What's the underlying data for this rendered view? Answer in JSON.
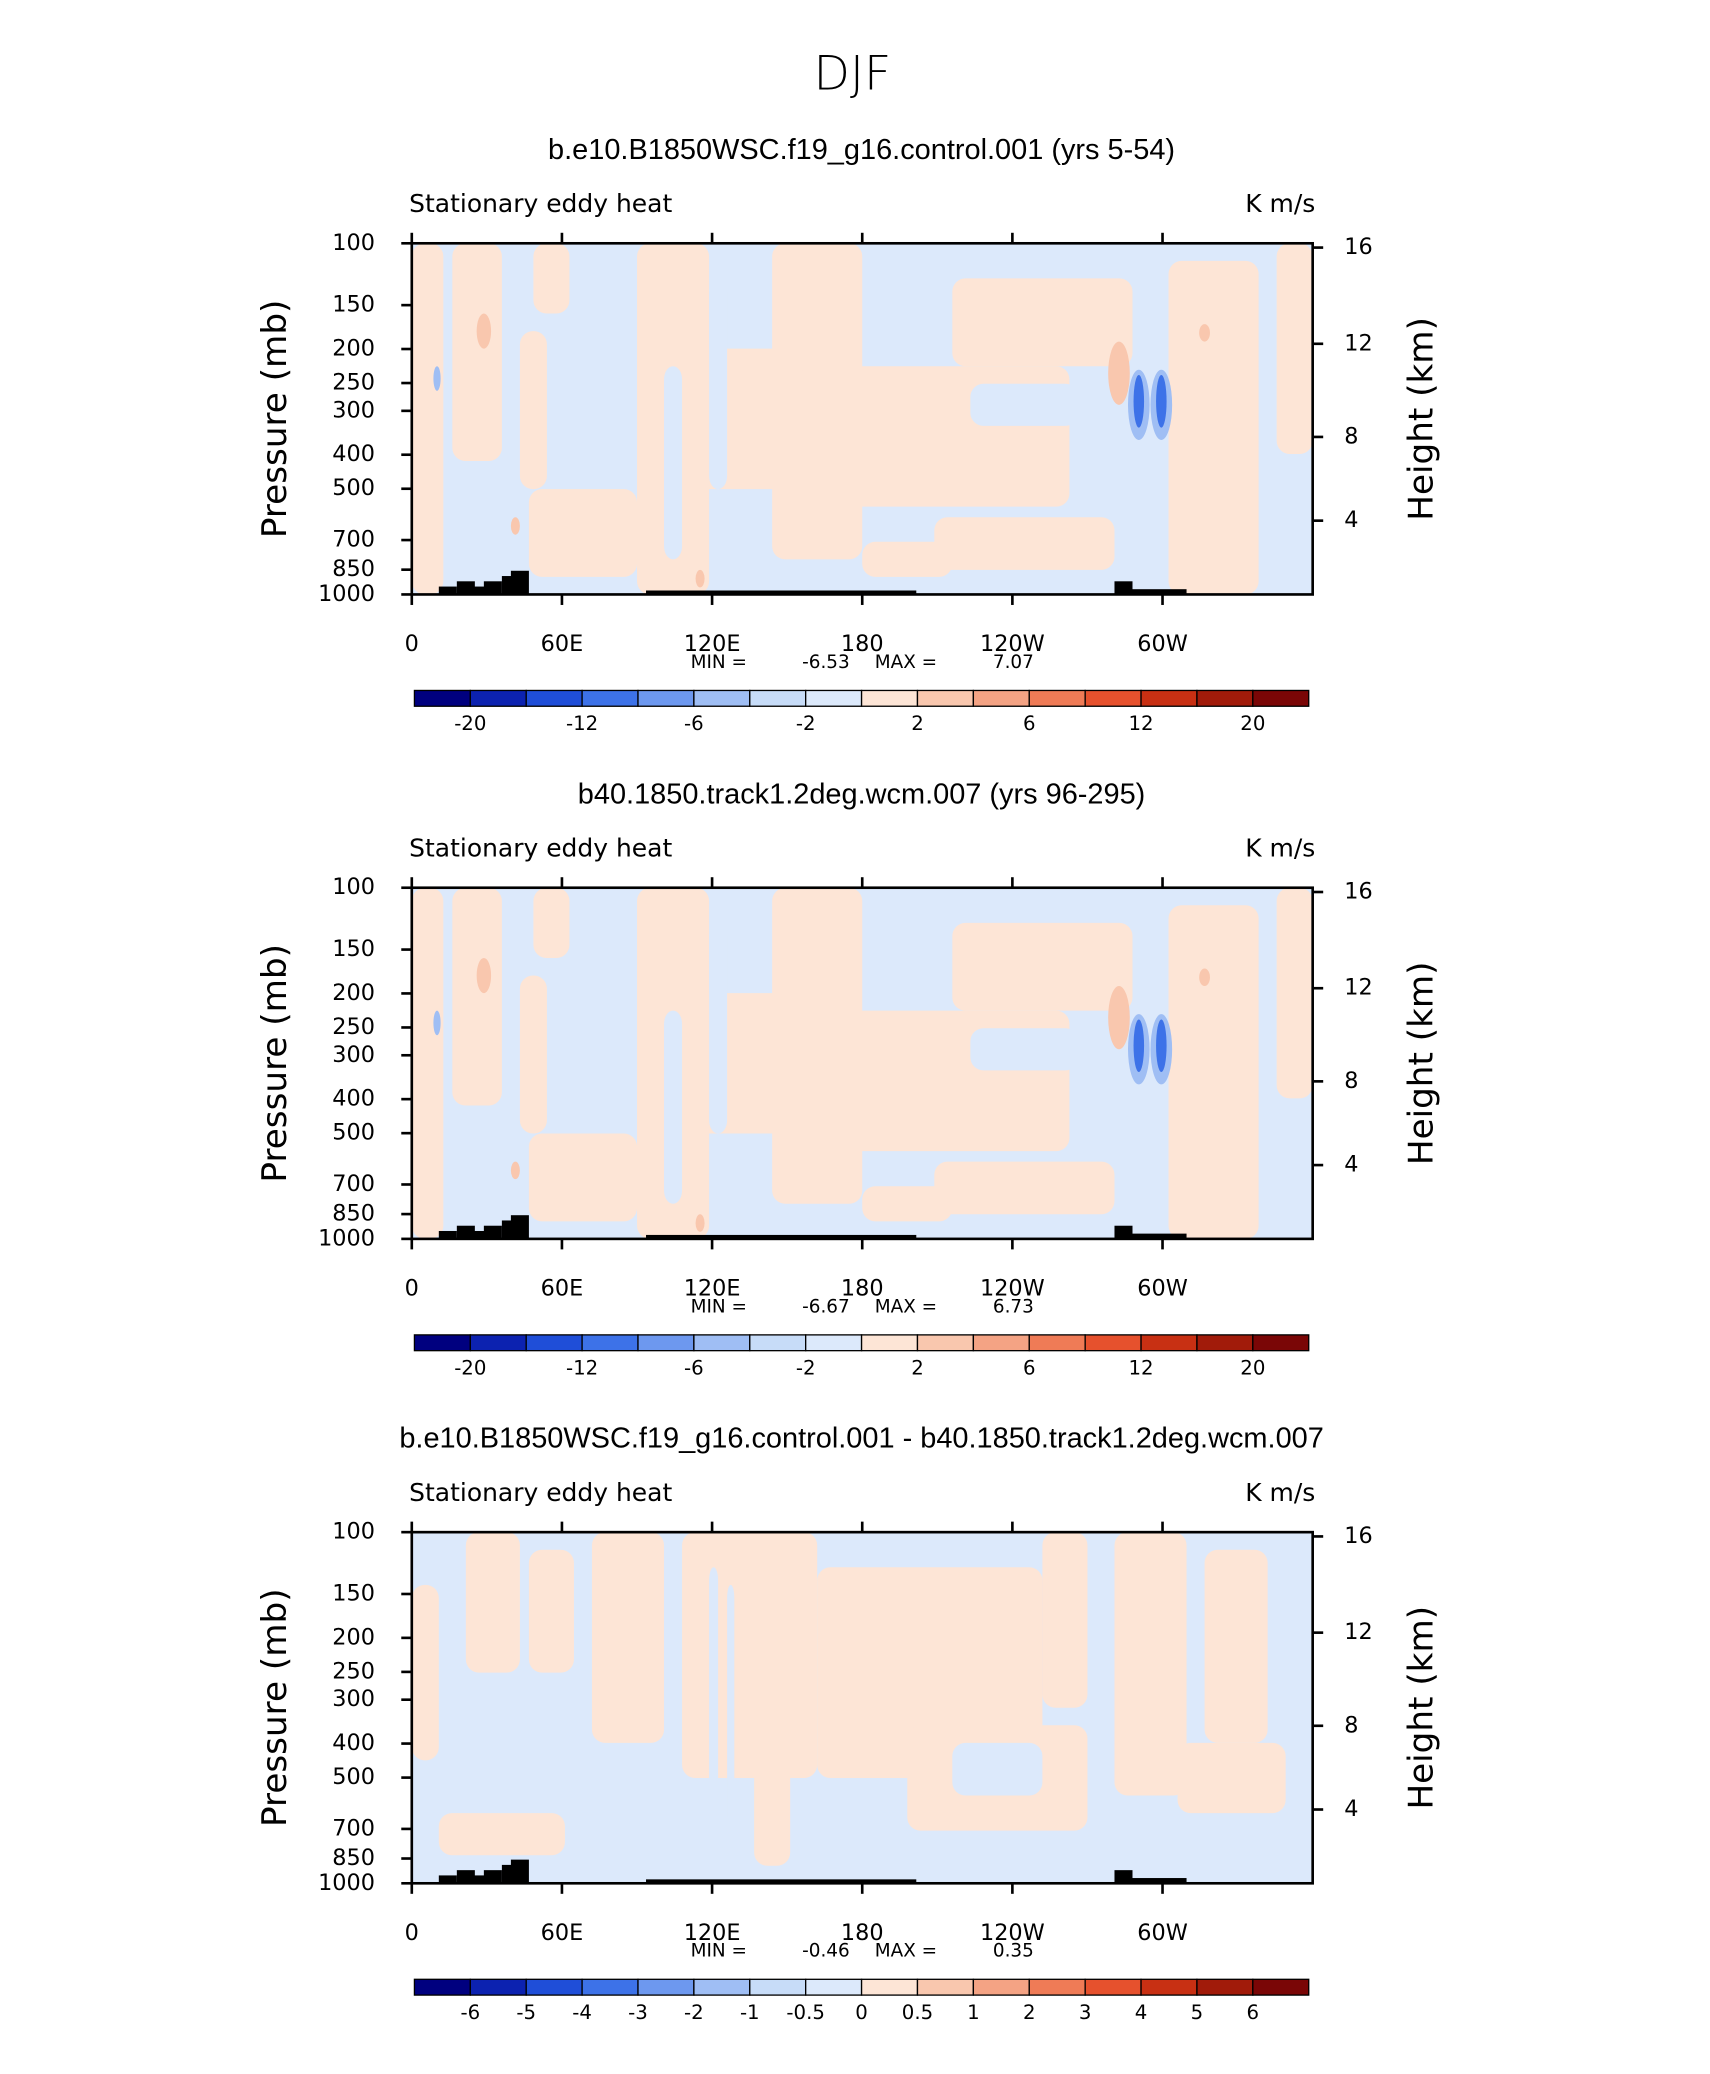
{
  "title": "DJF",
  "chart_data": [
    {
      "type": "contour",
      "title": "b.e10.B1850WSC.f19_g16.control.001 (yrs 5-54)",
      "subtitle": "Stationary eddy heat",
      "units": "K m/s",
      "ylabel": "Pressure (mb)",
      "y2label": "Height (km)",
      "ylim": [
        1000,
        100
      ],
      "log_scale": true,
      "yticks": [
        100,
        150,
        200,
        250,
        300,
        400,
        500,
        700,
        850,
        1000
      ],
      "y2ticks": [
        4,
        8,
        12,
        16
      ],
      "xlim": [
        0,
        360
      ],
      "xticks": [
        0,
        {
          "value": 60,
          "label": "60E"
        },
        {
          "value": 120,
          "label": "120E"
        },
        180,
        {
          "value": 240,
          "label": "120W"
        },
        {
          "value": 300,
          "label": "60W"
        }
      ],
      "min_label": "MIN =",
      "min": -6.53,
      "max_label": "MAX =",
      "max": 7.07,
      "colors": [
        "#00007f",
        "#0c22b0",
        "#1f4ed8",
        "#3d72e8",
        "#6d98ef",
        "#9fbef4",
        "#c7dcf8",
        "#dce9fb",
        "#fde5d6",
        "#f9c7ae",
        "#f4a384",
        "#ef7b56",
        "#e6512d",
        "#c83013",
        "#a11b0a",
        "#7a0606"
      ],
      "colorbar_ticks": [
        -20,
        -12,
        -6,
        -2,
        2,
        6,
        12,
        20
      ]
    },
    {
      "type": "contour",
      "title": "b40.1850.track1.2deg.wcm.007 (yrs 96-295)",
      "subtitle": "Stationary eddy heat",
      "units": "K m/s",
      "ylabel": "Pressure (mb)",
      "y2label": "Height (km)",
      "ylim": [
        1000,
        100
      ],
      "log_scale": true,
      "yticks": [
        100,
        150,
        200,
        250,
        300,
        400,
        500,
        700,
        850,
        1000
      ],
      "y2ticks": [
        4,
        8,
        12,
        16
      ],
      "xlim": [
        0,
        360
      ],
      "xticks": [
        0,
        {
          "value": 60,
          "label": "60E"
        },
        {
          "value": 120,
          "label": "120E"
        },
        180,
        {
          "value": 240,
          "label": "120W"
        },
        {
          "value": 300,
          "label": "60W"
        }
      ],
      "min_label": "MIN =",
      "min": -6.67,
      "max_label": "MAX =",
      "max": 6.73,
      "colors": [
        "#00007f",
        "#0c22b0",
        "#1f4ed8",
        "#3d72e8",
        "#6d98ef",
        "#9fbef4",
        "#c7dcf8",
        "#dce9fb",
        "#fde5d6",
        "#f9c7ae",
        "#f4a384",
        "#ef7b56",
        "#e6512d",
        "#c83013",
        "#a11b0a",
        "#7a0606"
      ],
      "colorbar_ticks": [
        -20,
        -12,
        -6,
        -2,
        2,
        6,
        12,
        20
      ]
    },
    {
      "type": "contour",
      "title": "b.e10.B1850WSC.f19_g16.control.001 - b40.1850.track1.2deg.wcm.007",
      "subtitle": "Stationary eddy heat",
      "units": "K m/s",
      "ylabel": "Pressure (mb)",
      "y2label": "Height (km)",
      "ylim": [
        1000,
        100
      ],
      "log_scale": true,
      "yticks": [
        100,
        150,
        200,
        250,
        300,
        400,
        500,
        700,
        850,
        1000
      ],
      "y2ticks": [
        4,
        8,
        12,
        16
      ],
      "xlim": [
        0,
        360
      ],
      "xticks": [
        0,
        {
          "value": 60,
          "label": "60E"
        },
        {
          "value": 120,
          "label": "120E"
        },
        180,
        {
          "value": 240,
          "label": "120W"
        },
        {
          "value": 300,
          "label": "60W"
        }
      ],
      "min_label": "MIN =",
      "min": -0.46,
      "max_label": "MAX =",
      "max": 0.35,
      "colors": [
        "#00007f",
        "#0c22b0",
        "#1f4ed8",
        "#3d72e8",
        "#6d98ef",
        "#9fbef4",
        "#c7dcf8",
        "#dce9fb",
        "#fde5d6",
        "#f9c7ae",
        "#f4a384",
        "#ef7b56",
        "#e6512d",
        "#c83013",
        "#a11b0a",
        "#7a0606"
      ],
      "colorbar_ticks": [
        -6,
        -5,
        -4,
        -3,
        -2,
        -1,
        -0.5,
        0,
        0.5,
        1,
        2,
        3,
        4,
        5,
        6
      ]
    }
  ]
}
